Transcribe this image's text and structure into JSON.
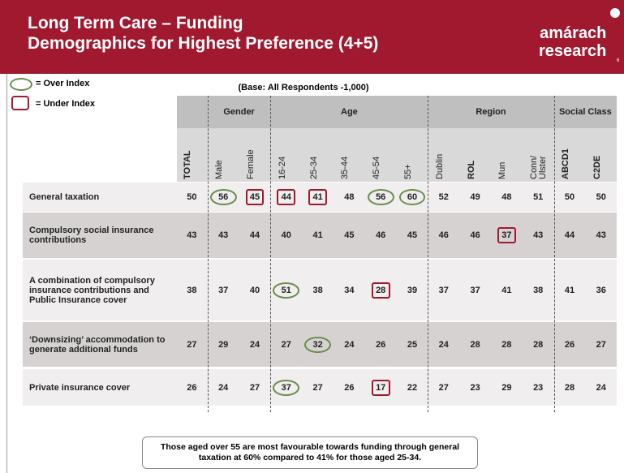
{
  "header": {
    "title_lines": [
      "Long Term Care – Funding",
      "Demographics for Highest Preference (4+5)"
    ],
    "logo": [
      "amárach",
      "research"
    ],
    "page_number": "6"
  },
  "legend": {
    "over": "= Over Index",
    "under": "= Under Index"
  },
  "table": {
    "base": "(Base:  All Respondents -1,000)",
    "groups": [
      {
        "label": null,
        "columns": [
          "TOTAL"
        ]
      },
      {
        "label": "Gender",
        "columns": [
          "Male",
          "Female"
        ]
      },
      {
        "label": "Age",
        "columns": [
          "16-24",
          "25-34",
          "35-44",
          "45-54",
          "55+"
        ]
      },
      {
        "label": "Region",
        "columns": [
          "Dublin",
          "ROL",
          "Mun",
          "Conn/ Ulster"
        ]
      },
      {
        "label": "Social Class",
        "columns": [
          "ABCD1",
          "C2DE"
        ]
      }
    ],
    "rows": [
      {
        "label": "General taxation",
        "values": [
          50,
          56,
          45,
          44,
          41,
          48,
          56,
          60,
          52,
          49,
          48,
          51,
          50,
          50
        ],
        "index": [
          null,
          "over",
          "under",
          "under",
          "under",
          null,
          "over",
          "over",
          null,
          null,
          null,
          null,
          null,
          null
        ]
      },
      {
        "label": "Compulsory social insurance contributions",
        "values": [
          43,
          43,
          44,
          40,
          41,
          45,
          46,
          45,
          46,
          46,
          37,
          43,
          44,
          43
        ],
        "index": [
          null,
          null,
          null,
          null,
          null,
          null,
          null,
          null,
          null,
          null,
          "under",
          null,
          null,
          null
        ]
      },
      {
        "label": "A combination of compulsory insurance contributions and Public Insurance cover",
        "values": [
          38,
          37,
          40,
          51,
          38,
          34,
          28,
          39,
          37,
          37,
          41,
          38,
          41,
          36
        ],
        "index": [
          null,
          null,
          null,
          "over",
          null,
          null,
          "under",
          null,
          null,
          null,
          null,
          null,
          null,
          null
        ]
      },
      {
        "label": "‘Downsizing’ accommodation to generate additional funds",
        "values": [
          27,
          29,
          24,
          27,
          32,
          24,
          26,
          25,
          24,
          28,
          28,
          28,
          26,
          27
        ],
        "index": [
          null,
          null,
          null,
          null,
          "over",
          null,
          null,
          null,
          null,
          null,
          null,
          null,
          null,
          null
        ]
      },
      {
        "label": "Private insurance cover",
        "values": [
          26,
          24,
          27,
          37,
          27,
          26,
          17,
          22,
          27,
          23,
          29,
          23,
          28,
          24
        ],
        "index": [
          null,
          null,
          null,
          "over",
          null,
          null,
          "under",
          null,
          null,
          null,
          null,
          null,
          null,
          null
        ]
      }
    ]
  },
  "footnote": "Those aged over 55 are most favourable towards funding through general taxation at 60% compared to 41% for those aged 25-34."
}
